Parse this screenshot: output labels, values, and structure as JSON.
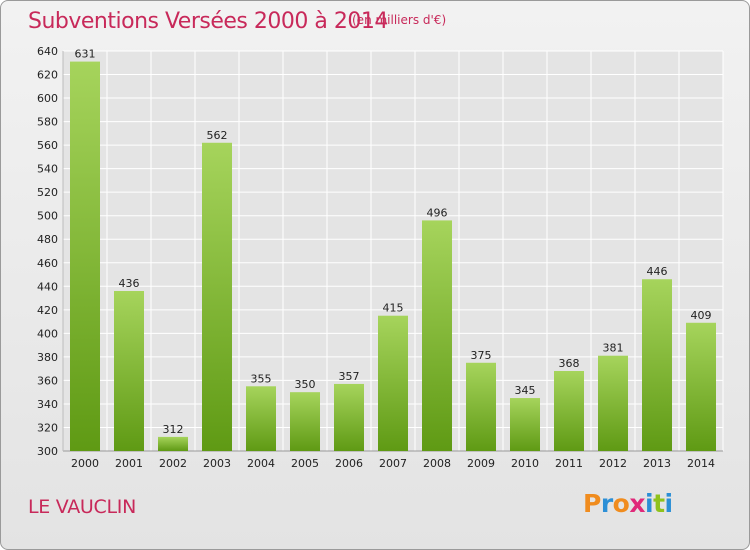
{
  "header": {
    "title": "Subventions Versées 2000 à 2014",
    "subtitle": "(en milliers d'€)"
  },
  "footer": {
    "commune": "LE VAUCLIN",
    "logo": "Proxiti",
    "logo_colors": [
      "#f08c1e",
      "#2c8fd6",
      "#f08c1e",
      "#e0297a",
      "#2c8fd6",
      "#8fc21c",
      "#2c8fd6"
    ]
  },
  "colors": {
    "bar_light": "#a6d45c",
    "bar_dark": "#5f9a14",
    "title": "#c8295a",
    "grid": "#ffffff",
    "plot_bg": "#e4e4e4"
  },
  "chart_data": {
    "type": "bar",
    "categories": [
      "2000",
      "2001",
      "2002",
      "2003",
      "2004",
      "2005",
      "2006",
      "2007",
      "2008",
      "2009",
      "2010",
      "2011",
      "2012",
      "2013",
      "2014"
    ],
    "values": [
      631,
      436,
      312,
      562,
      355,
      350,
      357,
      415,
      496,
      375,
      345,
      368,
      381,
      446,
      409
    ],
    "ylim": [
      300,
      640
    ],
    "yticks": [
      300,
      320,
      340,
      360,
      380,
      400,
      420,
      440,
      460,
      480,
      500,
      520,
      540,
      560,
      580,
      600,
      620,
      640
    ],
    "grid": true,
    "xlabel": "",
    "ylabel": ""
  }
}
